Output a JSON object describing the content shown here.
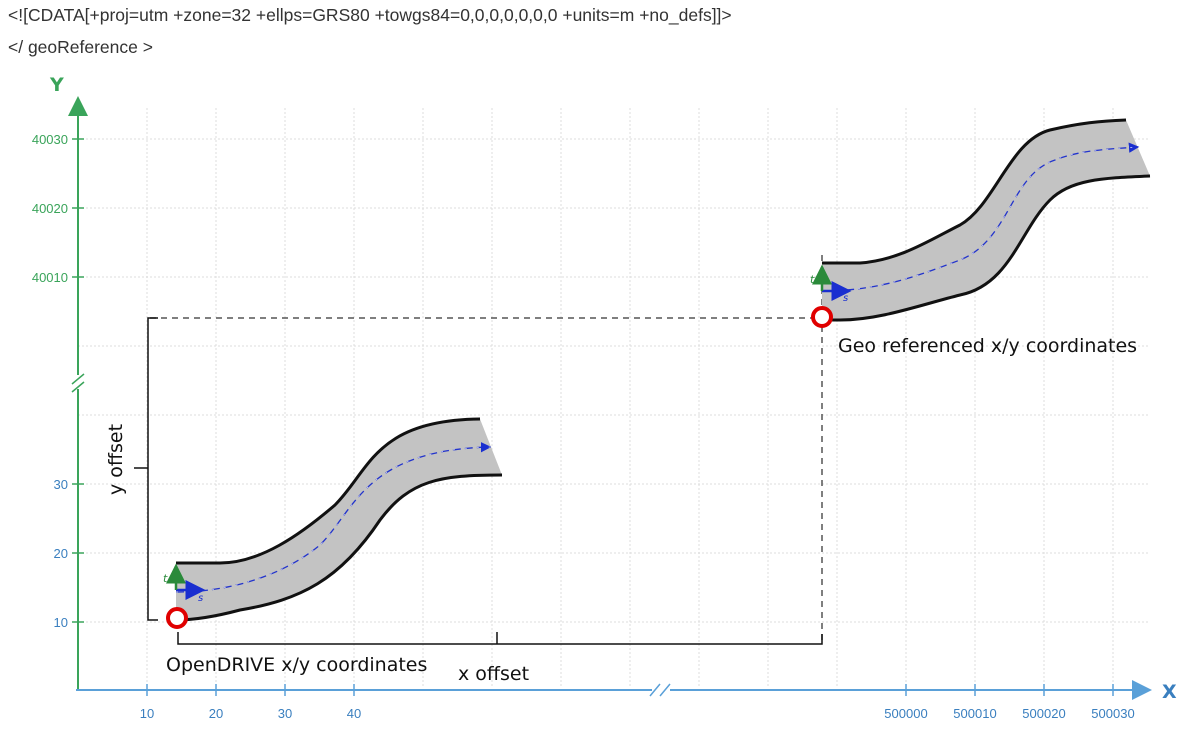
{
  "code": {
    "line1": "<![CDATA[+proj=utm +zone=32 +ellps=GRS80 +towgs84=0,0,0,0,0,0,0 +units=m +no_defs]]>",
    "line2": "</ geoReference >"
  },
  "axes": {
    "y_title": "Y",
    "x_title": "X",
    "y_ticks_high": [
      "40030",
      "40020",
      "40010"
    ],
    "y_ticks_low": [
      "30",
      "20",
      "10"
    ],
    "x_ticks_low": [
      "10",
      "20",
      "30",
      "40"
    ],
    "x_ticks_high": [
      "500000",
      "500010",
      "500020",
      "500030"
    ]
  },
  "labels": {
    "y_offset": "y offset",
    "x_offset": "x offset",
    "opendrive": "OpenDRIVE x/y coordinates",
    "georef": "Geo referenced x/y coordinates",
    "s_axis": "s",
    "t_axis": "t"
  },
  "colors": {
    "y_axis": "#3aa45a",
    "x_axis": "#5aa0d8",
    "road_fill": "#c3c3c3",
    "origin_marker": "#e00000",
    "s_arrow": "#1a2fd0",
    "t_arrow": "#2a8a3a"
  }
}
